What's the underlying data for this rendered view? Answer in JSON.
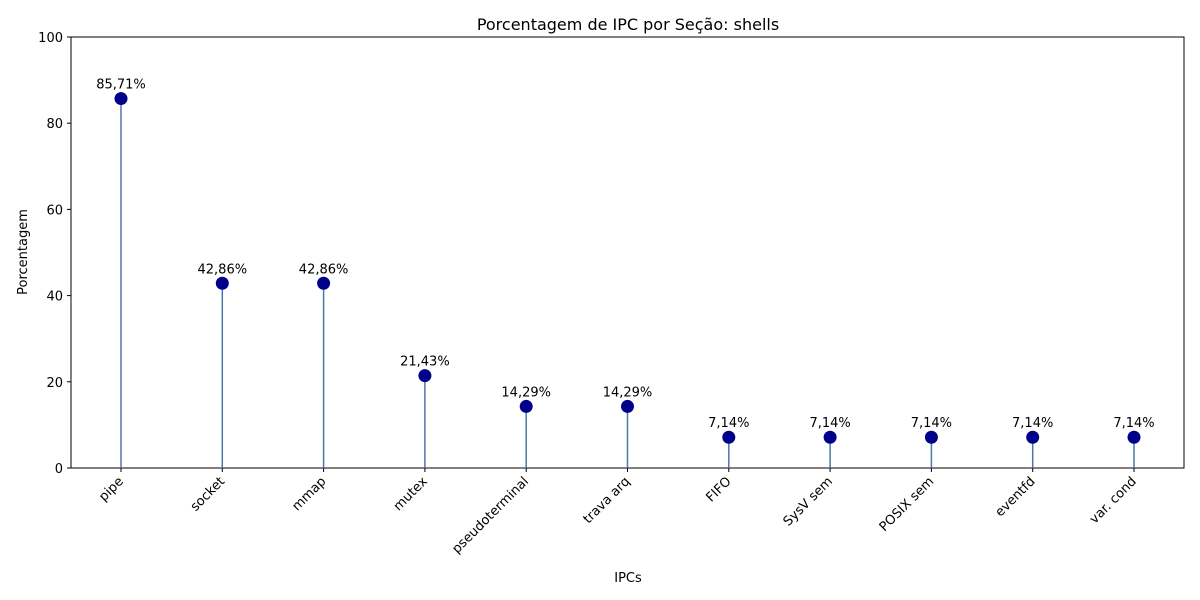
{
  "chart_data": {
    "type": "lollipop",
    "title": "Porcentagem de IPC por Seção: shells",
    "xlabel": "IPCs",
    "ylabel": "Porcentagem",
    "ylim": [
      0,
      100
    ],
    "yticks": [
      0,
      20,
      40,
      60,
      80,
      100
    ],
    "categories": [
      "pipe",
      "socket",
      "mmap",
      "mutex",
      "pseudoterminal",
      "trava arq",
      "FIFO",
      "SysV sem",
      "POSIX sem",
      "eventfd",
      "var. cond"
    ],
    "values": [
      85.71,
      42.86,
      42.86,
      21.43,
      14.29,
      14.29,
      7.14,
      7.14,
      7.14,
      7.14,
      7.14
    ],
    "data_labels": [
      "85,71%",
      "42,86%",
      "42,86%",
      "21,43%",
      "14,29%",
      "14,29%",
      "7,14%",
      "7,14%",
      "7,14%",
      "7,14%",
      "7,14%"
    ],
    "grid": false,
    "colors": {
      "marker": "#00008b",
      "stem": "#4a78a8"
    }
  }
}
